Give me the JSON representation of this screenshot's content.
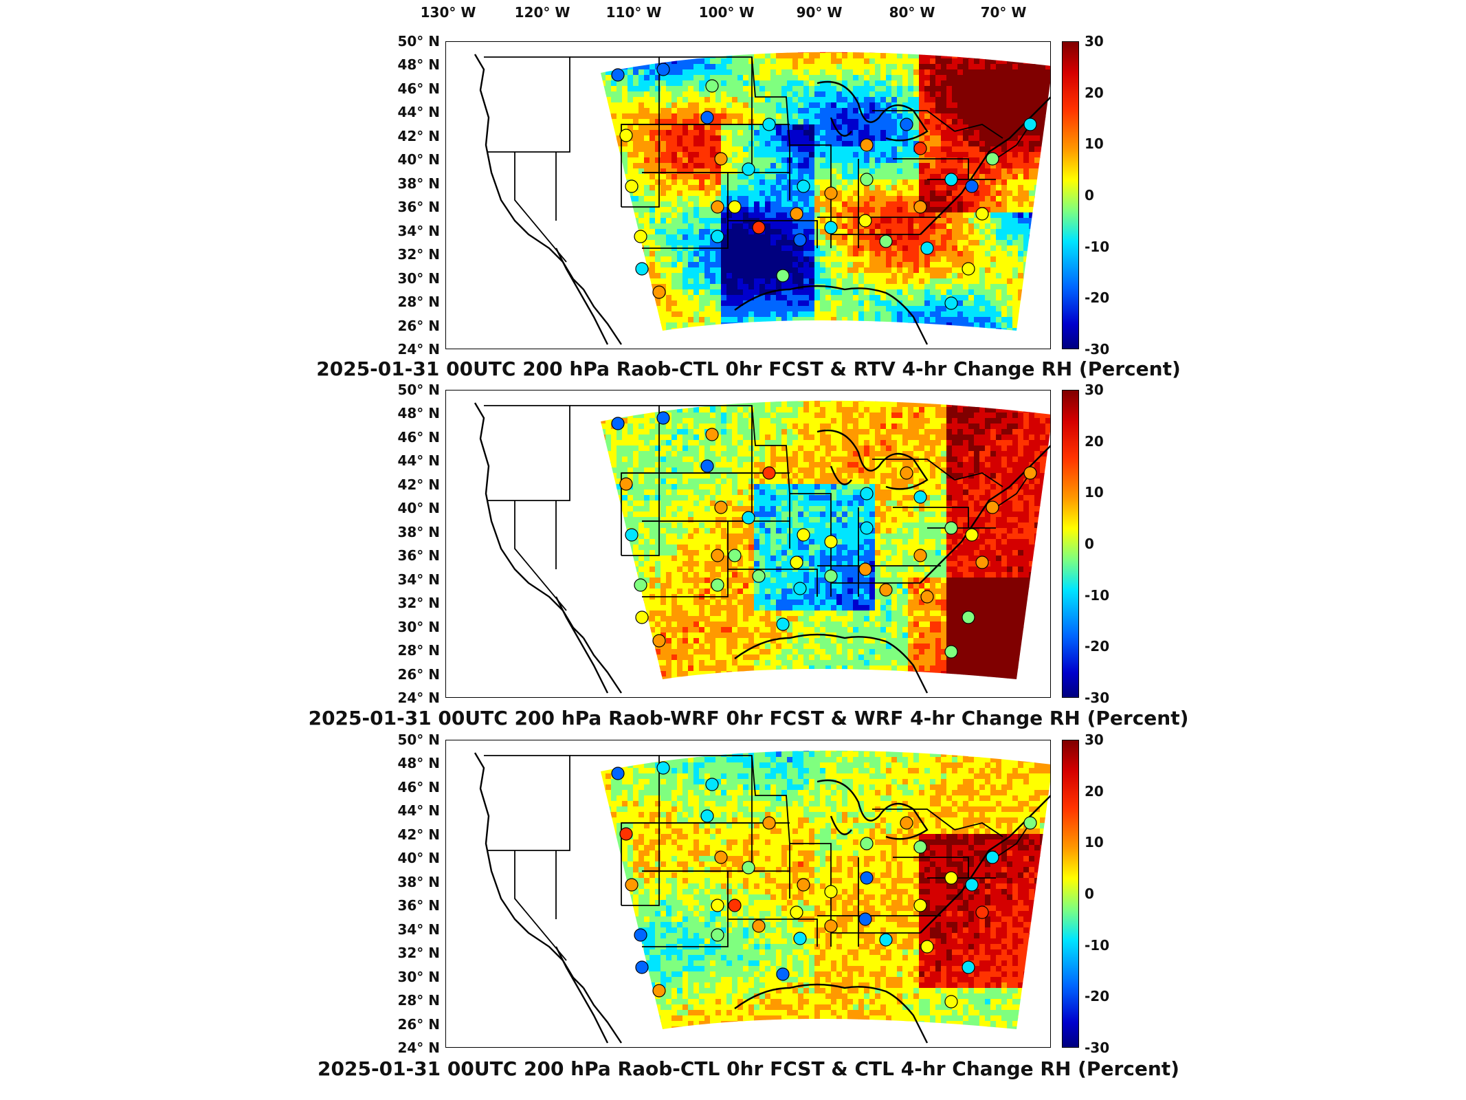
{
  "lon_labels": [
    "130° W",
    "120° W",
    "110° W",
    "100° W",
    "90° W",
    "80° W",
    "70° W"
  ],
  "lat_labels": [
    "50° N",
    "48° N",
    "46° N",
    "44° N",
    "42° N",
    "40° N",
    "38° N",
    "36° N",
    "34° N",
    "32° N",
    "30° N",
    "28° N",
    "26° N",
    "24° N"
  ],
  "colorbar": {
    "ticks": [
      "30",
      "20",
      "10",
      "0",
      "-10",
      "-20",
      "-30"
    ],
    "range": [
      -30,
      30
    ],
    "colormap": "jet",
    "colors": [
      "#00007f",
      "#0000cc",
      "#0066ff",
      "#00e5ff",
      "#7fff7f",
      "#ffff00",
      "#ff9900",
      "#ff3300",
      "#d40000",
      "#800000"
    ]
  },
  "panels": [
    {
      "title": "2025-01-31 00UTC 200 hPa Raob-CTL 0hr FCST & RTV 4-hr Change RH (Percent)"
    },
    {
      "title": "2025-01-31 00UTC 200 hPa Raob-WRF 0hr FCST & WRF 4-hr Change RH (Percent)"
    },
    {
      "title": "2025-01-31 00UTC 200 hPa Raob-CTL 0hr FCST & CTL 4-hr Change RH (Percent)"
    }
  ]
}
